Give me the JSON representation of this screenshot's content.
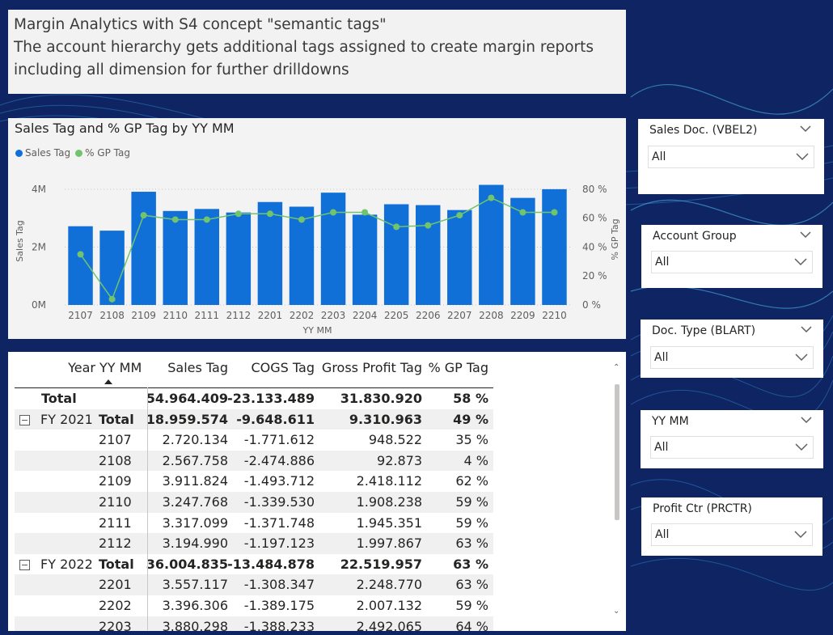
{
  "textbox": {
    "line1": "Margin Analytics with S4 concept \"semantic tags\"",
    "line2": "The account hierarchy gets additional tags assigned to create margin reports",
    "line3": "including all dimension for further drilldowns"
  },
  "chart": {
    "title": "Sales Tag and % GP Tag by YY MM",
    "legend": [
      {
        "label": "Sales Tag",
        "color": "#1070d8"
      },
      {
        "label": "% GP Tag",
        "color": "#71c46c"
      }
    ]
  },
  "chart_data": {
    "type": "bar",
    "title": "Sales Tag and % GP Tag by YY MM",
    "xlabel": "YY MM",
    "ylabel": "Sales Tag",
    "y2label": "% GP Tag",
    "categories": [
      "2107",
      "2108",
      "2109",
      "2110",
      "2111",
      "2112",
      "2201",
      "2202",
      "2203",
      "2204",
      "2205",
      "2206",
      "2207",
      "2208",
      "2209",
      "2210"
    ],
    "series": [
      {
        "name": "Sales Tag",
        "type": "bar",
        "axis": "left",
        "color": "#1070d8",
        "values": [
          2720134,
          2567758,
          3911824,
          3247768,
          3317099,
          3194990,
          3557117,
          3396306,
          3880298,
          3120000,
          3480000,
          3450000,
          3280000,
          4150000,
          3700000,
          4000000
        ]
      },
      {
        "name": "% GP Tag",
        "type": "line",
        "axis": "right",
        "color": "#71c46c",
        "values": [
          35,
          4,
          62,
          59,
          59,
          63,
          63,
          59,
          64,
          64,
          54,
          55,
          62,
          74,
          64,
          64
        ]
      }
    ],
    "ylim": [
      0,
      4500000
    ],
    "y_ticks": [
      "0M",
      "2M",
      "4M"
    ],
    "y2lim": [
      0,
      90
    ],
    "y2_ticks": [
      "0 %",
      "20 %",
      "40 %",
      "60 %",
      "80 %"
    ],
    "grid": true,
    "legend_position": "top-left"
  },
  "table": {
    "headers": [
      "Year",
      "YY MM",
      "Sales Tag",
      "COGS Tag",
      "Gross Profit Tag",
      "% GP Tag"
    ],
    "rows": [
      {
        "year": "Total",
        "yymm": "",
        "sales": "54.964.409",
        "cogs": "-23.133.489",
        "gp": "31.830.920",
        "pct": "58 %",
        "kind": "grand"
      },
      {
        "year": "FY 2021",
        "yymm": "Total",
        "sales": "18.959.574",
        "cogs": "-9.648.611",
        "gp": "9.310.963",
        "pct": "49 %",
        "kind": "subtotal"
      },
      {
        "year": "",
        "yymm": "2107",
        "sales": "2.720.134",
        "cogs": "-1.771.612",
        "gp": "948.522",
        "pct": "35 %",
        "kind": "detail"
      },
      {
        "year": "",
        "yymm": "2108",
        "sales": "2.567.758",
        "cogs": "-2.474.886",
        "gp": "92.873",
        "pct": "4 %",
        "kind": "detail"
      },
      {
        "year": "",
        "yymm": "2109",
        "sales": "3.911.824",
        "cogs": "-1.493.712",
        "gp": "2.418.112",
        "pct": "62 %",
        "kind": "detail"
      },
      {
        "year": "",
        "yymm": "2110",
        "sales": "3.247.768",
        "cogs": "-1.339.530",
        "gp": "1.908.238",
        "pct": "59 %",
        "kind": "detail"
      },
      {
        "year": "",
        "yymm": "2111",
        "sales": "3.317.099",
        "cogs": "-1.371.748",
        "gp": "1.945.351",
        "pct": "59 %",
        "kind": "detail"
      },
      {
        "year": "",
        "yymm": "2112",
        "sales": "3.194.990",
        "cogs": "-1.197.123",
        "gp": "1.997.867",
        "pct": "63 %",
        "kind": "detail"
      },
      {
        "year": "FY 2022",
        "yymm": "Total",
        "sales": "36.004.835",
        "cogs": "-13.484.878",
        "gp": "22.519.957",
        "pct": "63 %",
        "kind": "subtotal"
      },
      {
        "year": "",
        "yymm": "2201",
        "sales": "3.557.117",
        "cogs": "-1.308.347",
        "gp": "2.248.770",
        "pct": "63 %",
        "kind": "detail"
      },
      {
        "year": "",
        "yymm": "2202",
        "sales": "3.396.306",
        "cogs": "-1.389.175",
        "gp": "2.007.132",
        "pct": "59 %",
        "kind": "detail"
      },
      {
        "year": "",
        "yymm": "2203",
        "sales": "3.880.298",
        "cogs": "-1.388.233",
        "gp": "2.492.065",
        "pct": "64 %",
        "kind": "detail"
      }
    ]
  },
  "slicers": [
    {
      "title": "Sales Doc. (VBEL2)",
      "value": "All"
    },
    {
      "title": "Account Group",
      "value": "All"
    },
    {
      "title": "Doc. Type (BLART)",
      "value": "All"
    },
    {
      "title": "YY MM",
      "value": "All"
    },
    {
      "title": "Profit Ctr (PRCTR)",
      "value": "All"
    }
  ]
}
